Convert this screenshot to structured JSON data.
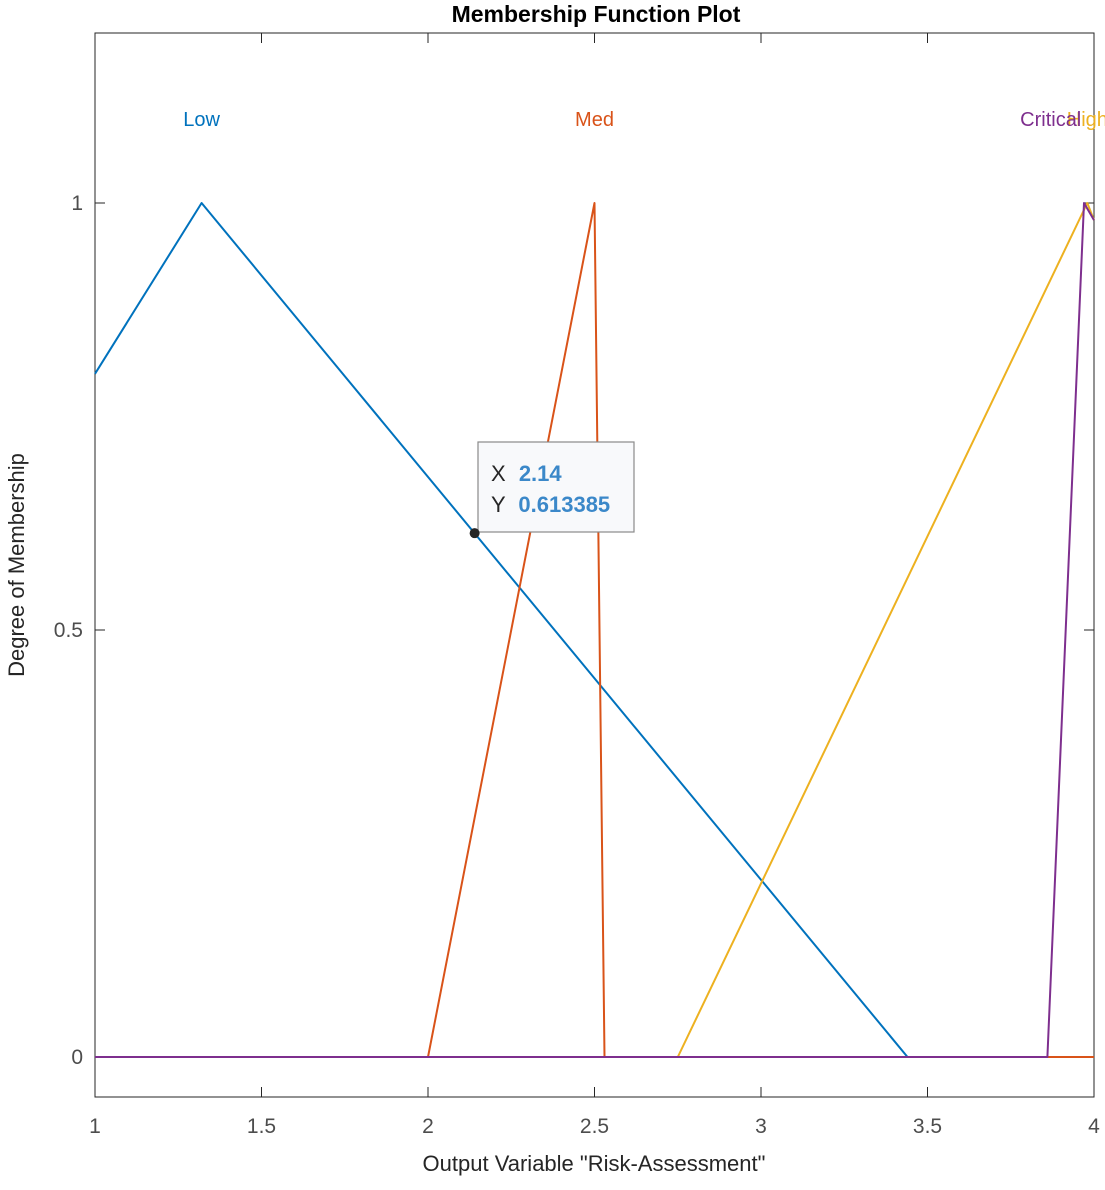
{
  "chart_data": {
    "type": "line",
    "title": "Membership Function Plot",
    "xlabel": "Output Variable \"Risk-Assessment\"",
    "ylabel": "Degree of Membership",
    "xlim": [
      1,
      4
    ],
    "ylim": [
      -0.05,
      1.2
    ],
    "xticks": [
      1,
      1.5,
      2,
      2.5,
      3,
      3.5,
      4
    ],
    "xtick_labels": [
      "1",
      "1.5",
      "2",
      "2.5",
      "3",
      "3.5",
      "4"
    ],
    "yticks": [
      0,
      0.5,
      1
    ],
    "ytick_labels": [
      "0",
      "0.5",
      "1"
    ],
    "grid": false,
    "series": [
      {
        "name": "Low",
        "color": "#0072BD",
        "label_x": 1.32,
        "x": [
          1,
          1.32,
          3.44,
          4
        ],
        "y": [
          0.8,
          1,
          0,
          0
        ]
      },
      {
        "name": "Med",
        "color": "#D95319",
        "label_x": 2.5,
        "x": [
          1,
          2,
          2.5,
          2.53,
          4
        ],
        "y": [
          0,
          0,
          1,
          0,
          0
        ]
      },
      {
        "name": "High",
        "color": "#EDB120",
        "label_x": 3.98,
        "x": [
          1,
          2.75,
          3.98,
          4
        ],
        "y": [
          0,
          0,
          1,
          0.98
        ]
      },
      {
        "name": "Critical",
        "color": "#7E2F8E",
        "label_x": 3.87,
        "x": [
          1,
          3.86,
          3.97,
          4
        ],
        "y": [
          0,
          0,
          1,
          0.98
        ]
      }
    ],
    "datatip": {
      "x": 2.14,
      "y": 0.613385,
      "x_label": "X",
      "y_label": "Y",
      "x_text": "2.14",
      "y_text": "0.613385",
      "color": "#3b88c9"
    }
  }
}
